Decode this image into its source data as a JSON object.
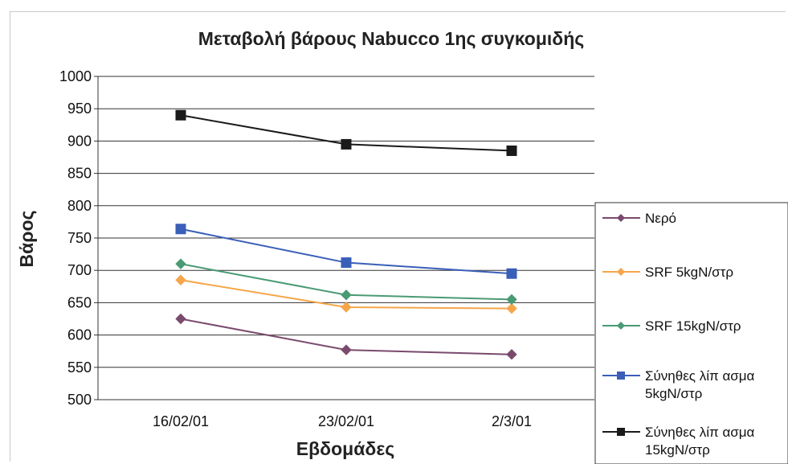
{
  "chart_data": {
    "type": "line",
    "title": "Μεταβολή βάρους Nabucco 1ης συγκομιδής",
    "xlabel": "Εβδομάδες",
    "ylabel": "Βάρος",
    "categories": [
      "16/02/01",
      "23/02/01",
      "2/3/01"
    ],
    "ylim": [
      500,
      1000
    ],
    "yticks": [
      500,
      550,
      600,
      650,
      700,
      750,
      800,
      850,
      900,
      950,
      1000
    ],
    "grid": true,
    "legend_position": "right",
    "series": [
      {
        "name": "Νερό",
        "values": [
          625,
          577,
          570
        ],
        "color": "#7a4a6e",
        "marker": "diamond"
      },
      {
        "name": "SRF 5kgN/στρ",
        "values": [
          685,
          643,
          641
        ],
        "color": "#f5a64a",
        "marker": "diamond"
      },
      {
        "name": "SRF 15kgN/στρ",
        "values": [
          710,
          662,
          655
        ],
        "color": "#4a9a74",
        "marker": "diamond"
      },
      {
        "name": "Σύνηθες λίπασμα 5kgN/στρ",
        "legend_lines": [
          "Σύνηθες λίπ ασμα",
          "5kgN/στρ"
        ],
        "values": [
          764,
          712,
          695
        ],
        "color": "#3a5fb8",
        "marker": "square"
      },
      {
        "name": "Σύνηθες λίπασμα 15kgN/στρ",
        "legend_lines": [
          "Σύνηθες λίπ ασμα",
          "15kgN/στρ"
        ],
        "values": [
          940,
          895,
          885
        ],
        "color": "#1a1a1a",
        "marker": "square"
      }
    ]
  }
}
